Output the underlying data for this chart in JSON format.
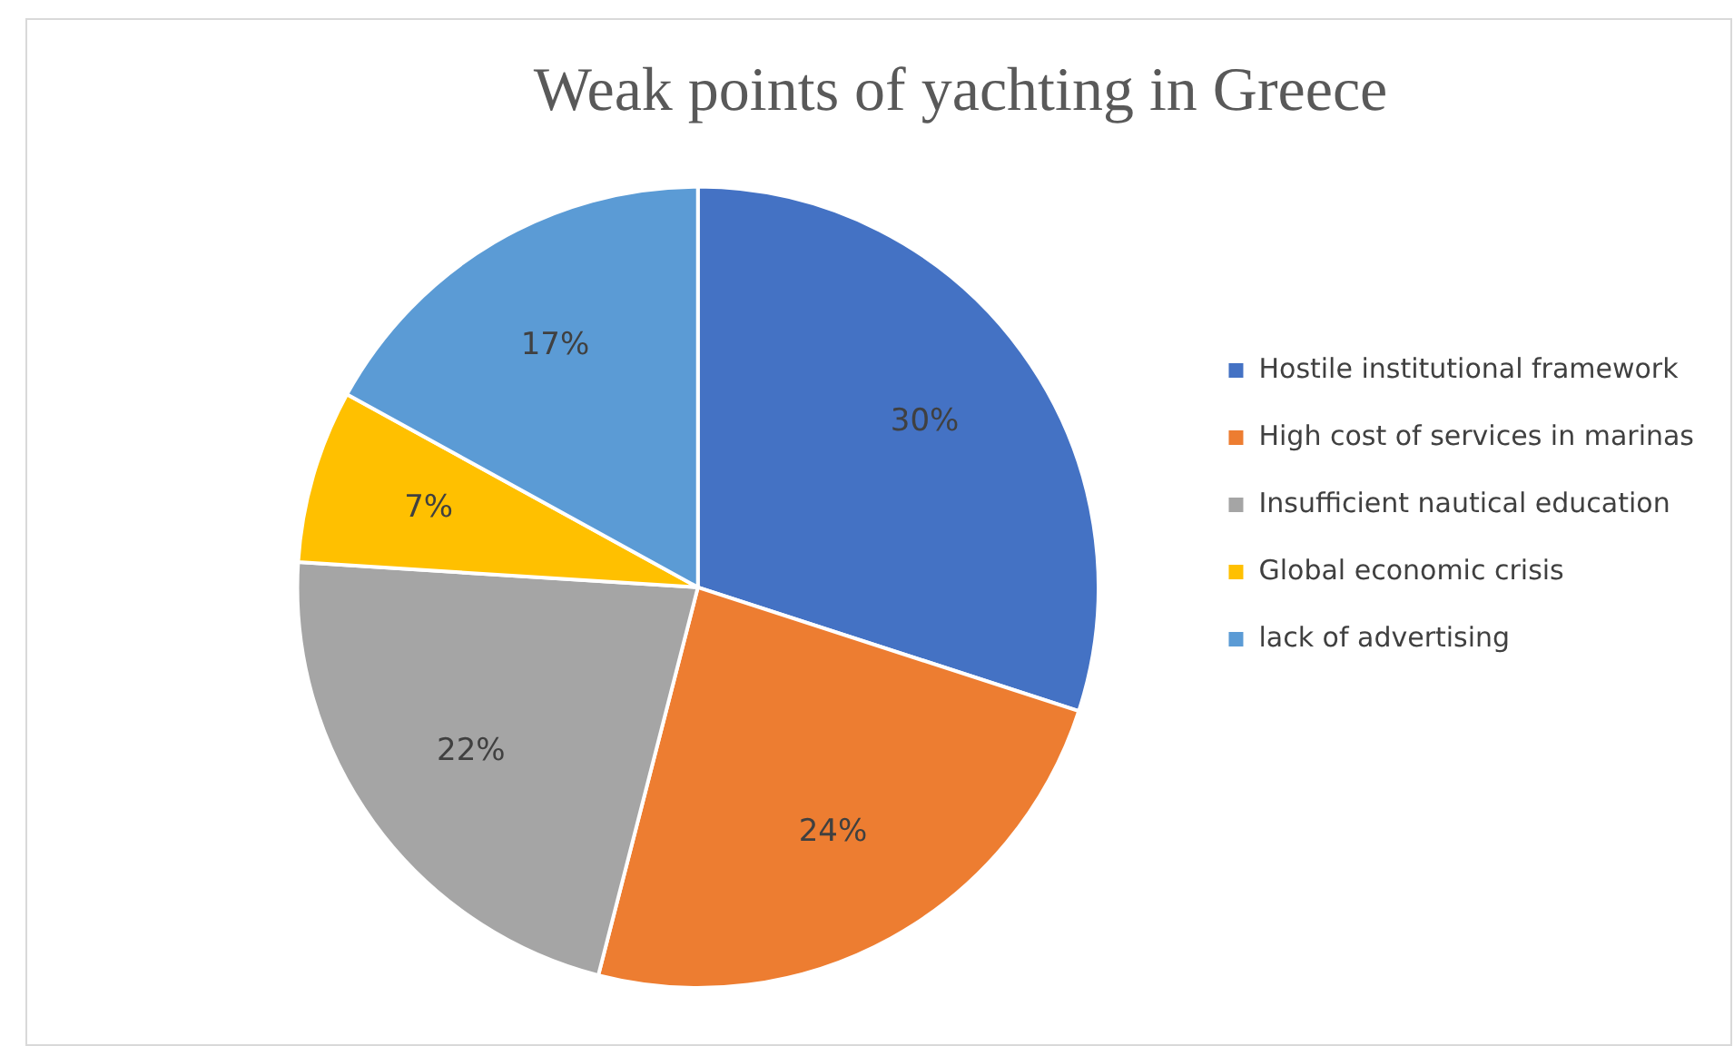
{
  "chart_data": {
    "type": "pie",
    "title": "Weak points of yachting in Greece",
    "categories": [
      "Hostile institutional framework",
      "High cost of services in marinas",
      "Insufficient nautical education",
      "Global economic crisis",
      "lack of advertising"
    ],
    "values": [
      30,
      24,
      22,
      7,
      17
    ],
    "colors": [
      "#4472c4",
      "#ed7d31",
      "#a5a5a5",
      "#ffc000",
      "#5b9bd5"
    ],
    "value_labels": [
      "30%",
      "24%",
      "22%",
      "7%",
      "17%"
    ],
    "legend": "right"
  }
}
